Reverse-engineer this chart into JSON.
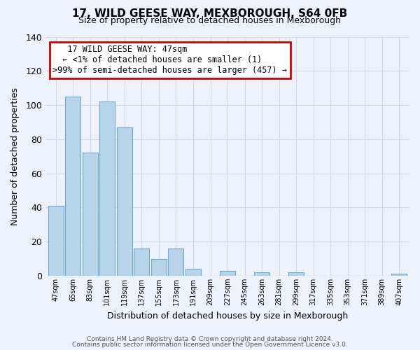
{
  "title": "17, WILD GEESE WAY, MEXBOROUGH, S64 0FB",
  "subtitle": "Size of property relative to detached houses in Mexborough",
  "xlabel": "Distribution of detached houses by size in Mexborough",
  "ylabel": "Number of detached properties",
  "bin_labels": [
    "47sqm",
    "65sqm",
    "83sqm",
    "101sqm",
    "119sqm",
    "137sqm",
    "155sqm",
    "173sqm",
    "191sqm",
    "209sqm",
    "227sqm",
    "245sqm",
    "263sqm",
    "281sqm",
    "299sqm",
    "317sqm",
    "335sqm",
    "353sqm",
    "371sqm",
    "389sqm",
    "407sqm"
  ],
  "bar_heights": [
    41,
    105,
    72,
    102,
    87,
    16,
    10,
    16,
    4,
    0,
    3,
    0,
    2,
    0,
    2,
    0,
    0,
    0,
    0,
    0,
    1
  ],
  "bar_color": "#b8d4e8",
  "bar_edge_color": "#6aaad4",
  "ylim": [
    0,
    140
  ],
  "yticks": [
    0,
    20,
    40,
    60,
    80,
    100,
    120,
    140
  ],
  "annotation_title": "17 WILD GEESE WAY: 47sqm",
  "annotation_line1": "← <1% of detached houses are smaller (1)",
  "annotation_line2": ">99% of semi-detached houses are larger (457) →",
  "footer1": "Contains HM Land Registry data © Crown copyright and database right 2024.",
  "footer2": "Contains public sector information licensed under the Open Government Licence v3.0.",
  "bg_color": "#eef2fb",
  "grid_color": "#d0d8ee",
  "ann_box_color": "#cc0000"
}
